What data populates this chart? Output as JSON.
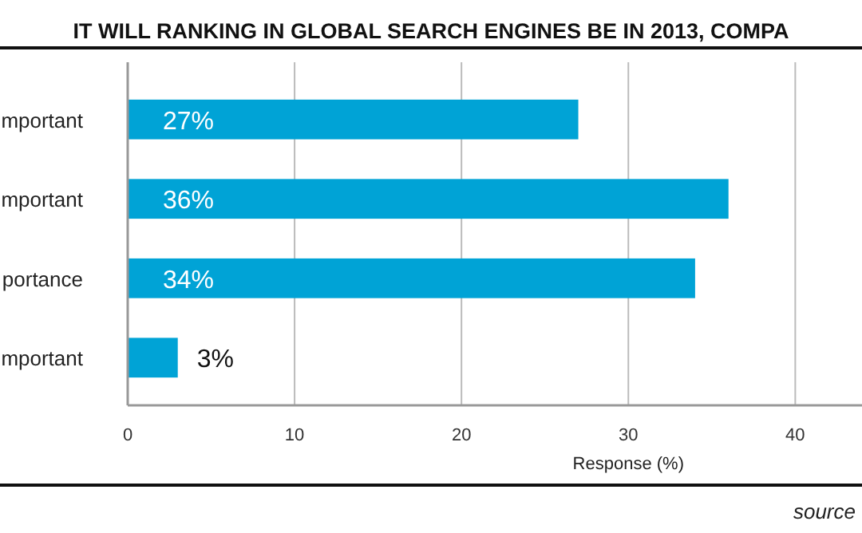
{
  "chart_data": {
    "type": "bar",
    "orientation": "horizontal",
    "title": "IT WILL RANKING IN GLOBAL SEARCH ENGINES BE IN 2013, COMPA",
    "categories": [
      "mportant",
      "mportant",
      "portance",
      "mportant"
    ],
    "values": [
      27,
      36,
      34,
      3
    ],
    "color": "#00a3d6",
    "value_labels": [
      "27%",
      "36%",
      "34%",
      "3%"
    ],
    "xlabel": "Response (%)",
    "xlim": [
      0,
      44
    ],
    "xticks": [
      0,
      10,
      20,
      30,
      40
    ],
    "grid": "x",
    "annotations": [
      "source"
    ]
  }
}
